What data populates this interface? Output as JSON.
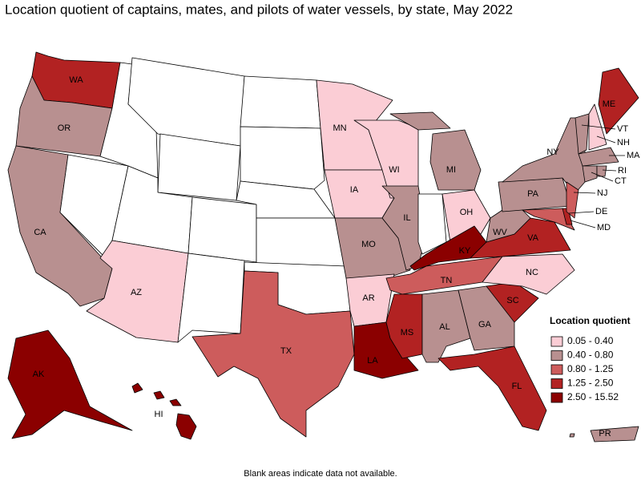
{
  "title": "Location quotient of captains, mates, and pilots of water vessels, by state, May 2022",
  "legend": {
    "title": "Location quotient",
    "items": [
      {
        "label": "0.05 - 0.40",
        "color": "#fbcdd5",
        "states": [
          "MN",
          "WI",
          "IA",
          "OH",
          "AZ",
          "AR",
          "NC",
          "NH"
        ]
      },
      {
        "label": "0.40 - 0.80",
        "color": "#b89090",
        "states": [
          "OR",
          "CA",
          "MI",
          "IL",
          "MO",
          "NY",
          "PA",
          "WV",
          "AL",
          "GA",
          "VT",
          "MA",
          "CT",
          "RI",
          "PR"
        ]
      },
      {
        "label": "0.80 - 1.25",
        "color": "#cd5c5c",
        "states": [
          "TX",
          "TN",
          "NJ",
          "MD"
        ]
      },
      {
        "label": "1.25 - 2.50",
        "color": "#b22222",
        "states": [
          "WA",
          "ME",
          "VA",
          "SC",
          "MS",
          "FL",
          "DE"
        ]
      },
      {
        "label": "2.50 - 15.52",
        "color": "#8b0000",
        "states": [
          "AK",
          "LA",
          "KY",
          "HI"
        ]
      }
    ]
  },
  "footnote": "Blank areas indicate data not available."
}
